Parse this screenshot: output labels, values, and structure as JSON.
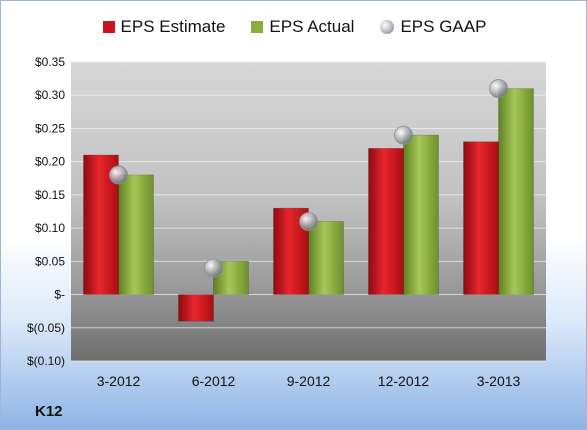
{
  "chart_data": {
    "type": "bar",
    "categories": [
      "3-2012",
      "6-2012",
      "9-2012",
      "12-2012",
      "3-2013"
    ],
    "series": [
      {
        "name": "EPS Estimate",
        "values": [
          0.21,
          -0.04,
          0.13,
          0.22,
          0.23
        ],
        "color": "#c8141c"
      },
      {
        "name": "EPS Actual",
        "values": [
          0.18,
          0.05,
          0.11,
          0.24,
          0.31
        ],
        "color": "#8cae3c"
      }
    ],
    "markers": {
      "name": "EPS GAAP",
      "values": [
        0.18,
        0.04,
        0.11,
        0.24,
        0.31
      ],
      "color": "#a6a9ae"
    },
    "ylim": [
      -0.1,
      0.35
    ],
    "yticks": [
      0.35,
      0.3,
      0.25,
      0.2,
      0.15,
      0.1,
      0.05,
      0,
      -0.05,
      -0.1
    ],
    "ytick_labels": [
      "$0.35",
      "$0.30",
      "$0.25",
      "$0.20",
      "$0.15",
      "$0.10",
      "$0.05",
      "$-",
      "$(0.05)",
      "$(0.10)"
    ],
    "grid": true,
    "legend": "top-center"
  },
  "footer": {
    "label": "K12"
  }
}
